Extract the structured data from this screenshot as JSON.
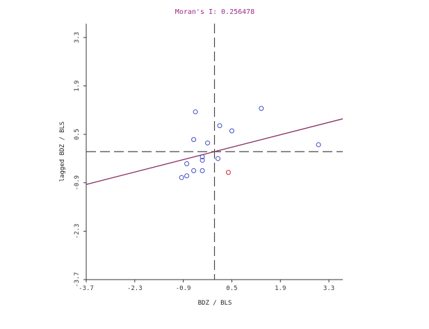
{
  "chart_data": {
    "type": "scatter",
    "title": "Moran's I: 0.256478",
    "xlabel": "BDZ / BLS",
    "ylabel": "lagged BDZ / BLS",
    "xlim": [
      -3.7,
      3.7
    ],
    "ylim": [
      -3.7,
      3.7
    ],
    "xticks": [
      "-3.7",
      "-2.3",
      "-0.9",
      "0.5",
      "1.9",
      "3.3"
    ],
    "yticks": [
      "-3.7",
      "-2.3",
      "-0.9",
      "0.5",
      "1.9",
      "3.3"
    ],
    "x_tick_values": [
      -3.7,
      -2.3,
      -0.9,
      0.5,
      1.9,
      3.3
    ],
    "y_tick_values": [
      -3.7,
      -2.3,
      -0.9,
      0.5,
      1.9,
      3.3
    ],
    "grid": false,
    "crosshair": {
      "x": 0.0,
      "y": 0.0
    },
    "regression_line": {
      "slope": 0.256478,
      "intercept": 0.0
    },
    "points": [
      {
        "x": -0.55,
        "y": 1.15
      },
      {
        "x": 1.35,
        "y": 1.25
      },
      {
        "x": 0.15,
        "y": 0.75
      },
      {
        "x": 0.5,
        "y": 0.6
      },
      {
        "x": -0.6,
        "y": 0.35
      },
      {
        "x": -0.2,
        "y": 0.25
      },
      {
        "x": 3.0,
        "y": 0.2
      },
      {
        "x": -0.35,
        "y": -0.15
      },
      {
        "x": -0.35,
        "y": -0.25
      },
      {
        "x": 0.1,
        "y": -0.2
      },
      {
        "x": -0.8,
        "y": -0.35
      },
      {
        "x": -0.6,
        "y": -0.55
      },
      {
        "x": -0.35,
        "y": -0.55
      },
      {
        "x": -0.8,
        "y": -0.7
      },
      {
        "x": -0.95,
        "y": -0.75
      },
      {
        "x": 0.4,
        "y": -0.6,
        "highlight": true
      }
    ],
    "colors": {
      "point": "#3b4bbd",
      "highlight_point": "#cc2222",
      "regression": "#8a2f66",
      "axis": "#333333",
      "crosshair": "#444444",
      "title": "#9a2a8a"
    }
  }
}
